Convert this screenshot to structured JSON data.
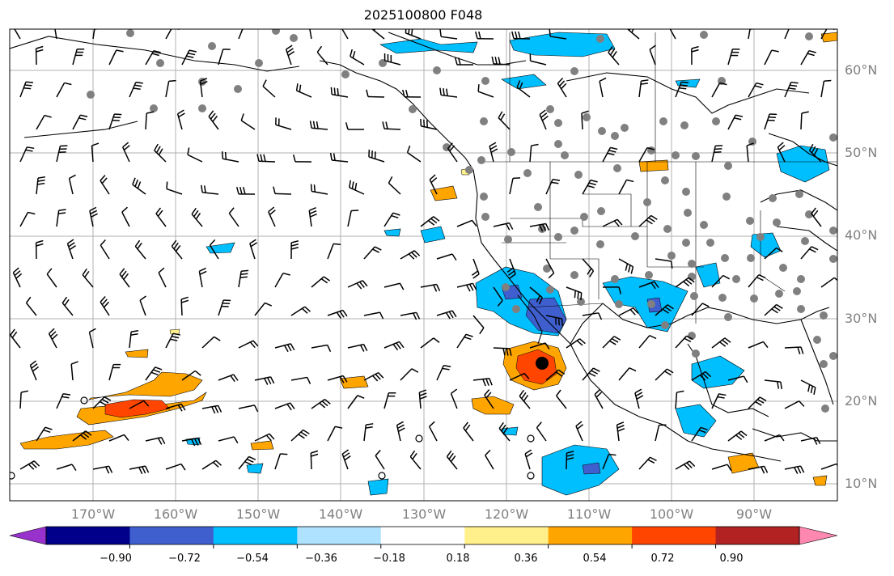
{
  "title": "2025100800 F048",
  "lat_labels": [
    "60°N",
    "50°N",
    "40°N",
    "30°N",
    "20°N",
    "10°N"
  ],
  "lon_labels": [
    "170°W",
    "160°W",
    "150°W",
    "140°W",
    "130°W",
    "120°W",
    "110°W",
    "100°W",
    "90°W"
  ],
  "colorbar": {
    "colors": [
      "#9932cc",
      "#00008b",
      "#3f5fcf",
      "#00bfff",
      "#aee2ff",
      "#ffffff",
      "#fff08c",
      "#ffa500",
      "#ff4500",
      "#b22222",
      "#ff88b0"
    ],
    "tick_labels": [
      "−0.90",
      "−0.72",
      "−0.54",
      "−0.36",
      "−0.18",
      "0.18",
      "0.36",
      "0.54",
      "0.72",
      "0.90"
    ]
  }
}
